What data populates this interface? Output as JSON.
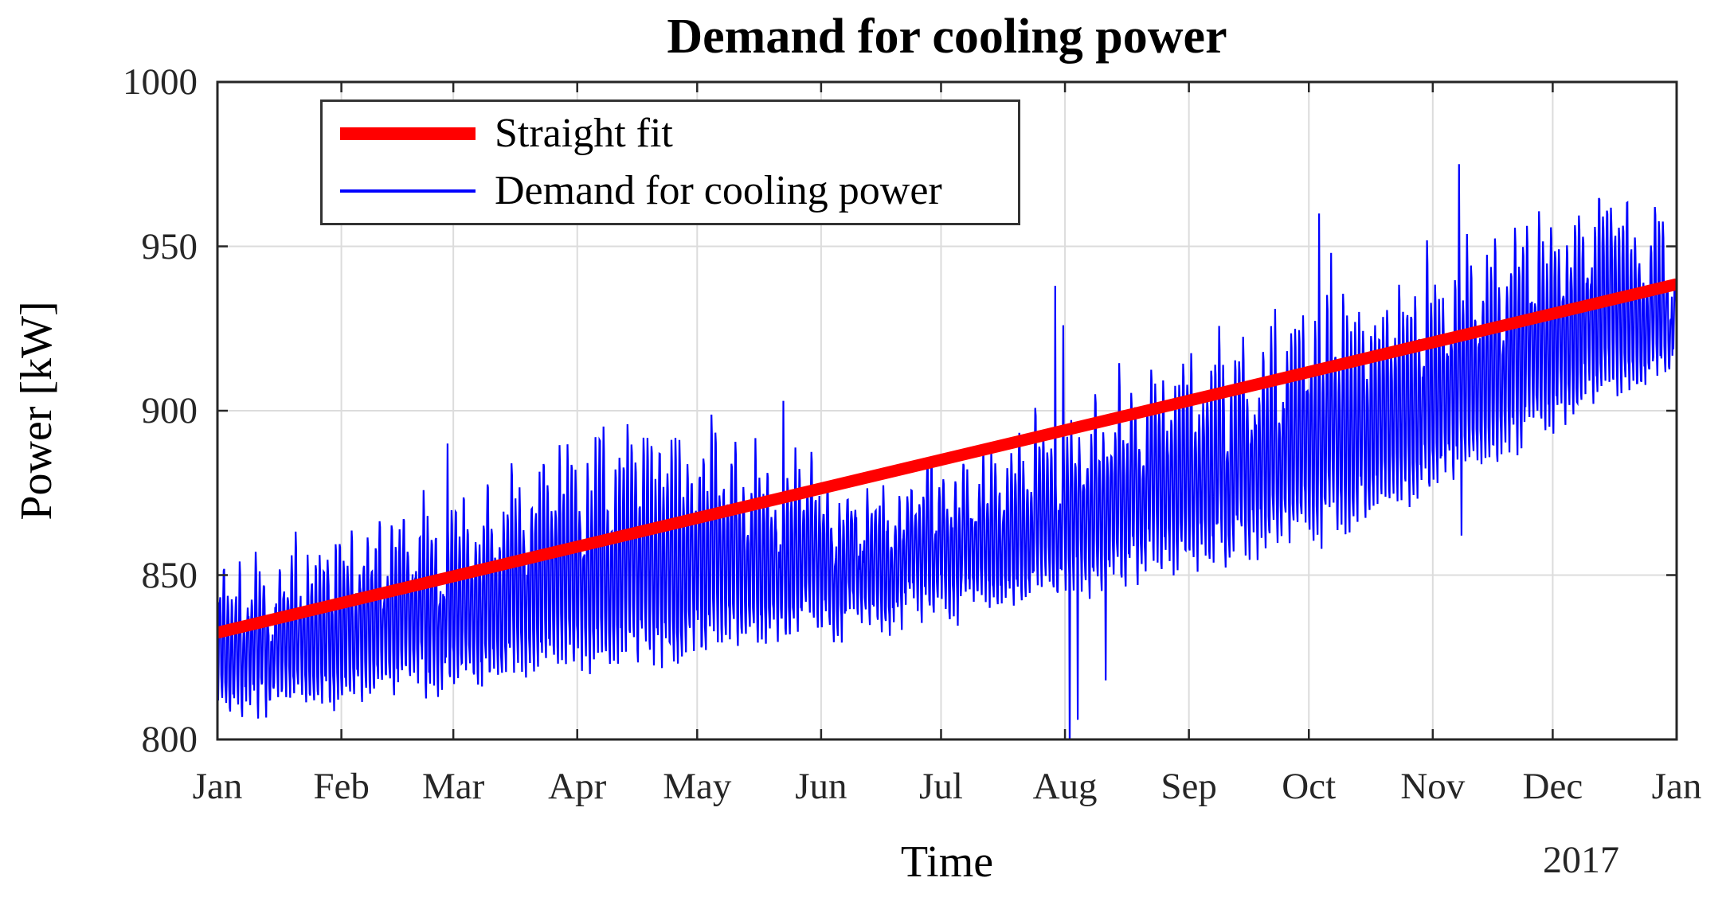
{
  "chart_data": {
    "type": "line",
    "title": "Demand for cooling power",
    "xlabel": "Time",
    "ylabel": "Power [kW]",
    "year_label": "2017",
    "x_axis": {
      "tick_labels": [
        "Jan",
        "Feb",
        "Mar",
        "Apr",
        "May",
        "Jun",
        "Jul",
        "Aug",
        "Sep",
        "Oct",
        "Nov",
        "Dec",
        "Jan"
      ],
      "tick_days": [
        0,
        31,
        59,
        90,
        120,
        151,
        181,
        212,
        243,
        273,
        304,
        334,
        365
      ],
      "range_days": [
        0,
        365
      ],
      "unit": "month of 2017"
    },
    "y_axis": {
      "tick_labels": [
        "1000",
        "950",
        "900",
        "850",
        "800"
      ],
      "tick_values": [
        1000,
        950,
        900,
        850,
        800
      ],
      "range": [
        800,
        1000
      ],
      "unit": "kW"
    },
    "grid": true,
    "legend": {
      "position": "top-left",
      "items": [
        {
          "label": "Straight fit",
          "color": "#ff0000",
          "line_width": 15
        },
        {
          "label": "Demand for cooling power",
          "color": "#0000ff",
          "line_width": 4
        }
      ]
    },
    "colors": {
      "fit": "#ff0000",
      "demand": "#0000ff",
      "grid": "#dcdcdc",
      "axis": "#262626",
      "text": "#1a1a1a",
      "background": "#ffffff"
    },
    "series": [
      {
        "name": "Straight fit",
        "type": "linear_fit",
        "points": [
          {
            "day": 0,
            "kw": 832.5
          },
          {
            "day": 365,
            "kw": 938.5
          }
        ]
      },
      {
        "name": "Demand for cooling power",
        "type": "measured",
        "samples_per_day": 8,
        "seed": 20170101,
        "daily_shape": [
          -0.85,
          -1.0,
          -0.45,
          0.5,
          1.0,
          0.85,
          0.15,
          -0.65
        ],
        "weekend_peak_factor": 0.5,
        "weekend_days": [
          0,
          6
        ],
        "noise_kw": 3,
        "day_level_jitter_kw": 5,
        "peak_jitter_kw": [
          -16,
          4
        ],
        "envelope": [
          {
            "day": 0,
            "low": 810,
            "high": 852
          },
          {
            "day": 15,
            "low": 813,
            "high": 856
          },
          {
            "day": 45,
            "low": 818,
            "high": 868
          },
          {
            "day": 74,
            "low": 822,
            "high": 880
          },
          {
            "day": 105,
            "low": 827,
            "high": 894
          },
          {
            "day": 135,
            "low": 833,
            "high": 888
          },
          {
            "day": 166,
            "low": 838,
            "high": 878
          },
          {
            "day": 196,
            "low": 844,
            "high": 888
          },
          {
            "day": 227,
            "low": 852,
            "high": 906
          },
          {
            "day": 258,
            "low": 860,
            "high": 922
          },
          {
            "day": 288,
            "low": 870,
            "high": 936
          },
          {
            "day": 319,
            "low": 888,
            "high": 950
          },
          {
            "day": 349,
            "low": 908,
            "high": 970
          },
          {
            "day": 365,
            "low": 916,
            "high": 950
          }
        ],
        "anomalies": [
          {
            "day": 57,
            "kw": 890,
            "dir": "up"
          },
          {
            "day": 141,
            "kw": 903,
            "dir": "up"
          },
          {
            "day": 209,
            "kw": 938,
            "dir": "up"
          },
          {
            "day": 211,
            "kw": 926,
            "dir": "up"
          },
          {
            "day": 213,
            "kw": 793,
            "dir": "down"
          },
          {
            "day": 215,
            "kw": 806,
            "dir": "down"
          },
          {
            "day": 222,
            "kw": 818,
            "dir": "down"
          },
          {
            "day": 264,
            "kw": 931,
            "dir": "up"
          },
          {
            "day": 275,
            "kw": 960,
            "dir": "up"
          },
          {
            "day": 276,
            "kw": 858,
            "dir": "down"
          },
          {
            "day": 278,
            "kw": 948,
            "dir": "up"
          },
          {
            "day": 310,
            "kw": 975,
            "dir": "up"
          },
          {
            "day": 311,
            "kw": 862,
            "dir": "down"
          }
        ]
      }
    ]
  }
}
